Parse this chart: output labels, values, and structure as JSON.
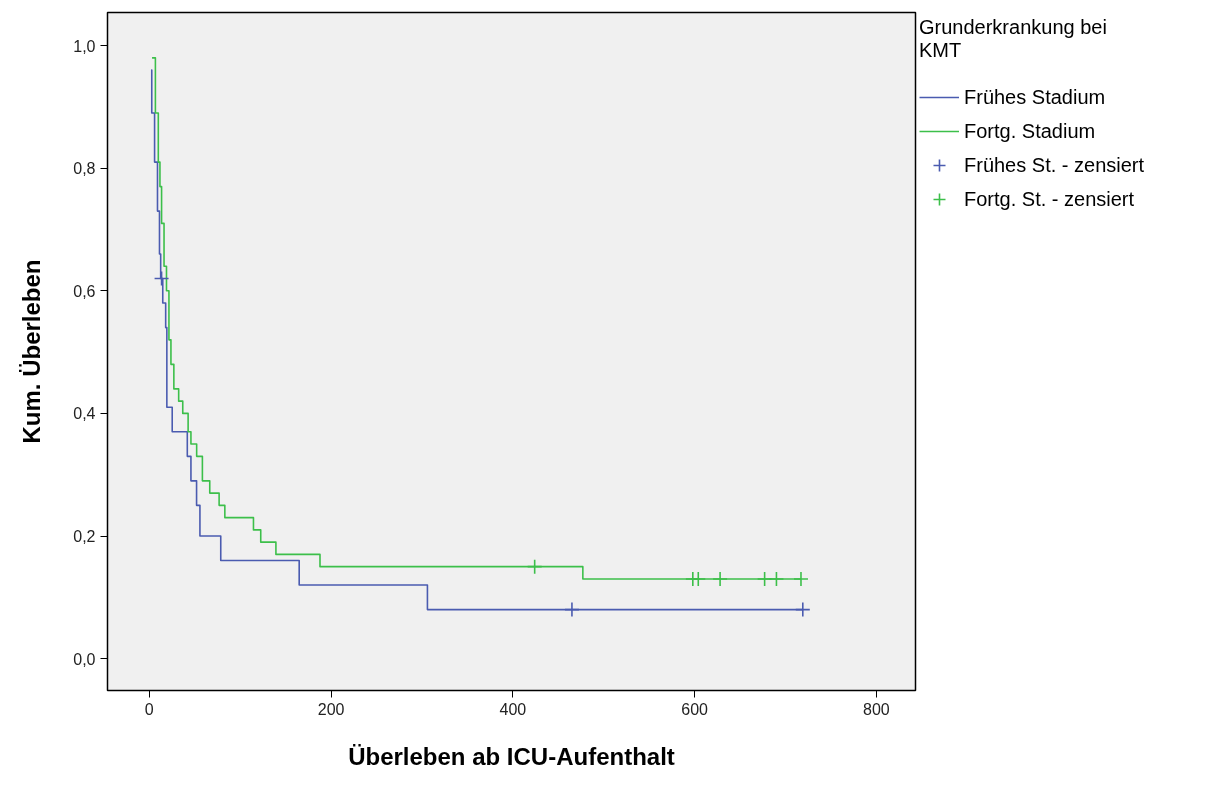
{
  "chart_data": {
    "type": "step",
    "xlabel": "Überleben ab ICU-Aufenthalt",
    "ylabel": "Kum. Überleben",
    "legend_title": "Grunderkrankung bei KMT",
    "legend": "top right",
    "grid": false,
    "line_style": "solid",
    "xlim": [
      -46,
      843
    ],
    "ylim": [
      -0.052,
      1.054
    ],
    "xticks": [
      0,
      200,
      400,
      600,
      800
    ],
    "yticks": [
      {
        "value": 0.0,
        "label": "0,0"
      },
      {
        "value": 0.2,
        "label": "0,2"
      },
      {
        "value": 0.4,
        "label": "0,4"
      },
      {
        "value": 0.6,
        "label": "0,6"
      },
      {
        "value": 0.8,
        "label": "0,8"
      },
      {
        "value": 1.0,
        "label": "1,0"
      }
    ],
    "series": [
      {
        "name": "Frühes Stadium",
        "color": "#4a5bb0",
        "x": [
          2,
          2.7,
          5.8,
          9,
          11.2,
          12.5,
          14.8,
          18,
          19.3,
          25.2,
          41.8,
          45.8,
          52,
          55.7,
          78.6,
          164.9,
          306,
          719
        ],
        "values": [
          0.96,
          0.89,
          0.81,
          0.73,
          0.66,
          0.62,
          0.58,
          0.54,
          0.41,
          0.37,
          0.33,
          0.29,
          0.25,
          0.2,
          0.16,
          0.12,
          0.08,
          0.08
        ]
      },
      {
        "name": "Fortg. Stadium",
        "color": "#3cbf4a",
        "x": [
          3,
          6.7,
          9.9,
          11.7,
          13.5,
          16.2,
          18.9,
          21.6,
          23.8,
          27,
          32.3,
          36.8,
          42.7,
          45.8,
          52.1,
          58.4,
          66.5,
          76.8,
          83.1,
          114.6,
          122.6,
          139.3,
          187.8,
          477,
          717
        ],
        "values": [
          0.98,
          0.89,
          0.81,
          0.77,
          0.71,
          0.64,
          0.6,
          0.52,
          0.48,
          0.44,
          0.42,
          0.4,
          0.37,
          0.35,
          0.33,
          0.29,
          0.27,
          0.25,
          0.23,
          0.21,
          0.19,
          0.17,
          0.15,
          0.13,
          0.13
        ]
      },
      {
        "name": "Frühes St. - zensiert",
        "type": "scatter",
        "marker": "cross",
        "color": "#4a5bb0",
        "x": [
          13.5,
          465,
          719
        ],
        "values": [
          0.62,
          0.08,
          0.08
        ]
      },
      {
        "name": "Fortg. St. - zensiert",
        "type": "scatter",
        "marker": "cross",
        "color": "#3cbf4a",
        "x": [
          424,
          598,
          604,
          628,
          677,
          690,
          717
        ],
        "values": [
          0.15,
          0.13,
          0.13,
          0.13,
          0.13,
          0.13,
          0.13
        ]
      }
    ]
  }
}
